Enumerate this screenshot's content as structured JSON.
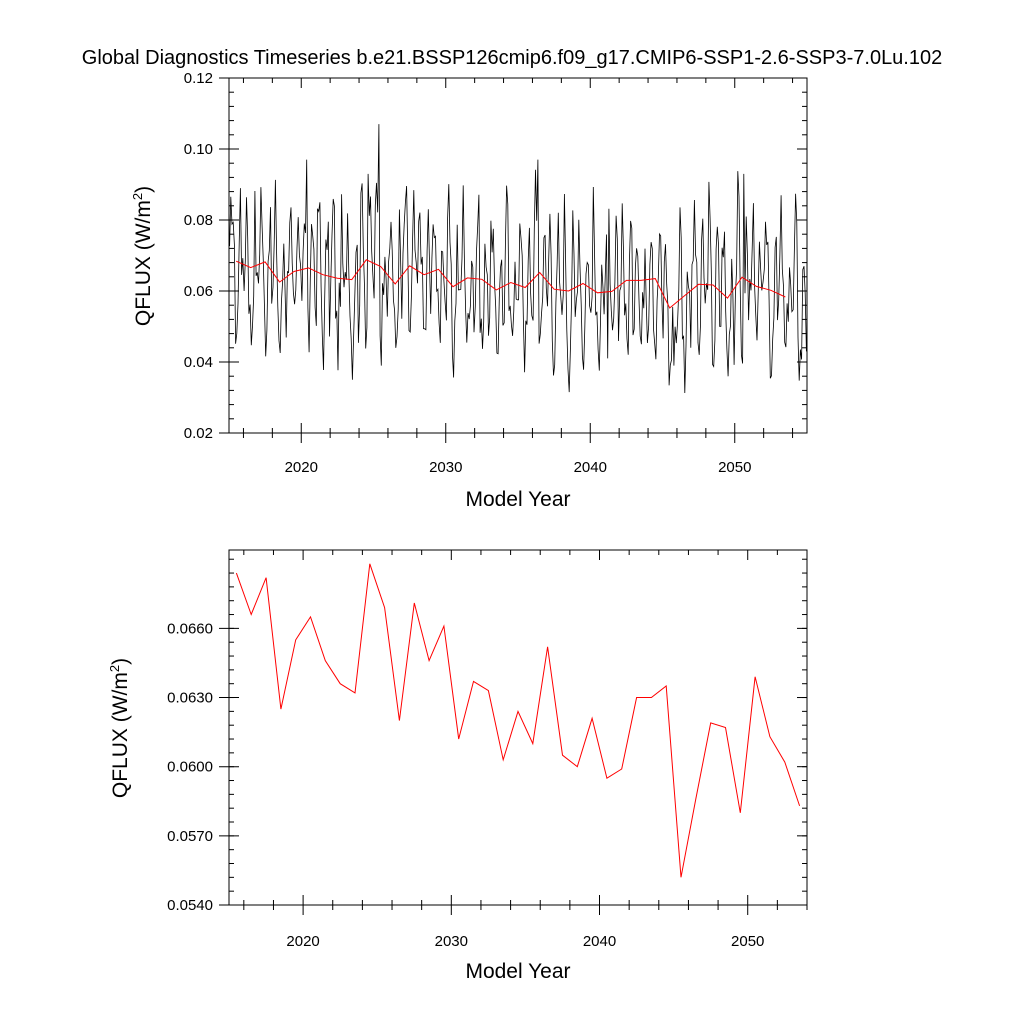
{
  "title": "Global Diagnostics Timeseries b.e21.BSSP126cmip6.f09_g17.CMIP6-SSP1-2.6-SSP3-7.0Lu.102",
  "chart_data": [
    {
      "type": "line",
      "title": "Global Diagnostics Timeseries b.e21.BSSP126cmip6.f09_g17.CMIP6-SSP1-2.6-SSP3-7.0Lu.102",
      "xlabel": "Model Year",
      "ylabel": "QFLUX (W/m2)",
      "ylabel_text": "QFLUX (W/m",
      "ylabel_sup": "2",
      "ylabel_close": ")",
      "xlim": [
        2015,
        2055
      ],
      "ylim": [
        0.02,
        0.12
      ],
      "xticks": [
        2020,
        2030,
        2040,
        2050
      ],
      "yticks": [
        "0.02",
        "0.04",
        "0.06",
        "0.08",
        "0.10",
        "0.12"
      ],
      "grid": false,
      "monthly_color": "#000000",
      "annual_color": "#ff0000",
      "monthly_seasonal_cycle": [
        0.062,
        0.074,
        0.084,
        0.078,
        0.062,
        0.052,
        0.05,
        0.055,
        0.068,
        0.078,
        0.07,
        0.058
      ],
      "monthly_peaks": [
        {
          "x": 2015.8,
          "y": 0.089
        },
        {
          "x": 2020.4,
          "y": 0.097
        },
        {
          "x": 2024.6,
          "y": 0.093
        },
        {
          "x": 2025.4,
          "y": 0.107
        },
        {
          "x": 2036.4,
          "y": 0.097
        },
        {
          "x": 2050.6,
          "y": 0.093
        },
        {
          "x": 2031.0,
          "y": 0.041
        },
        {
          "x": 2041.2,
          "y": 0.041
        },
        {
          "x": 2045.8,
          "y": 0.039
        }
      ],
      "annual_x": [
        2015.5,
        2016.5,
        2017.5,
        2018.5,
        2019.5,
        2020.5,
        2021.5,
        2022.5,
        2023.5,
        2024.5,
        2025.5,
        2026.5,
        2027.5,
        2028.5,
        2029.5,
        2030.5,
        2031.5,
        2032.5,
        2033.5,
        2034.5,
        2035.5,
        2036.5,
        2037.5,
        2038.5,
        2039.5,
        2040.5,
        2041.5,
        2042.5,
        2043.5,
        2044.5,
        2045.5,
        2046.5,
        2047.5,
        2048.5,
        2049.5,
        2050.5,
        2051.5,
        2052.5,
        2053.5
      ],
      "annual_y": [
        0.0684,
        0.0666,
        0.0682,
        0.0625,
        0.0655,
        0.0665,
        0.0646,
        0.0636,
        0.0632,
        0.0688,
        0.0669,
        0.062,
        0.0671,
        0.0646,
        0.0661,
        0.0612,
        0.0637,
        0.0633,
        0.0603,
        0.0624,
        0.061,
        0.0652,
        0.0605,
        0.06,
        0.0621,
        0.0595,
        0.0599,
        0.063,
        0.063,
        0.0635,
        0.0552,
        0.0586,
        0.0619,
        0.0617,
        0.058,
        0.0639,
        0.0613,
        0.0602,
        0.0583
      ]
    },
    {
      "type": "line",
      "xlabel": "Model Year",
      "ylabel": "QFLUX (W/m2)",
      "ylabel_text": "QFLUX (W/m",
      "ylabel_sup": "2",
      "ylabel_close": ")",
      "xlim": [
        2015,
        2054
      ],
      "ylim": [
        0.054,
        0.0694
      ],
      "xticks": [
        2020,
        2030,
        2040,
        2050
      ],
      "yticks": [
        "0.0540",
        "0.0570",
        "0.0600",
        "0.0630",
        "0.0660"
      ],
      "grid": false,
      "color": "#ff0000",
      "x": [
        2015.5,
        2016.5,
        2017.5,
        2018.5,
        2019.5,
        2020.5,
        2021.5,
        2022.5,
        2023.5,
        2024.5,
        2025.5,
        2026.5,
        2027.5,
        2028.5,
        2029.5,
        2030.5,
        2031.5,
        2032.5,
        2033.5,
        2034.5,
        2035.5,
        2036.5,
        2037.5,
        2038.5,
        2039.5,
        2040.5,
        2041.5,
        2042.5,
        2043.5,
        2044.5,
        2045.5,
        2046.5,
        2047.5,
        2048.5,
        2049.5,
        2050.5,
        2051.5,
        2052.5,
        2053.5
      ],
      "y": [
        0.0684,
        0.0666,
        0.0682,
        0.0625,
        0.0655,
        0.0665,
        0.0646,
        0.0636,
        0.0632,
        0.0688,
        0.0669,
        0.062,
        0.0671,
        0.0646,
        0.0661,
        0.0612,
        0.0637,
        0.0633,
        0.0603,
        0.0624,
        0.061,
        0.0652,
        0.0605,
        0.06,
        0.0621,
        0.0595,
        0.0599,
        0.063,
        0.063,
        0.0635,
        0.0552,
        0.0586,
        0.0619,
        0.0617,
        0.058,
        0.0639,
        0.0613,
        0.0602,
        0.0583
      ]
    }
  ]
}
